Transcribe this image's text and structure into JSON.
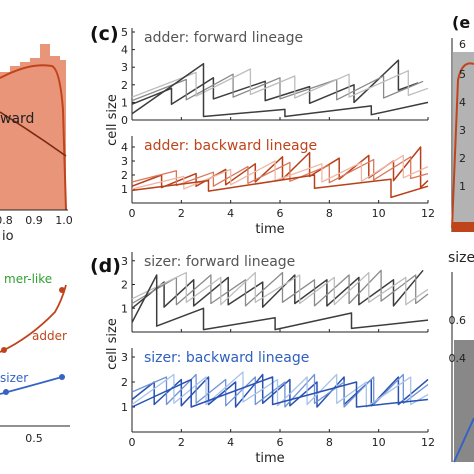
{
  "colors": {
    "forward": "#444444",
    "adder_backward": "#c0441b",
    "sizer_backward": "#2f5fbf",
    "adder_curve": "#c0441b",
    "sizer_curve": "#3463c4",
    "timer": "#2ea02e",
    "hist_fill": "#e8957a",
    "hist_dark": "#c0441b",
    "gray": "#888888"
  },
  "labels": {
    "panel_c": "(c)",
    "panel_d": "(d)",
    "top_right_label": "(e",
    "sizer_right": "sizer:"
  },
  "chart_data": [
    {
      "id": "panel-b-left-histogram",
      "type": "bar",
      "xlabel": "io",
      "x_ticks": [
        "0.8",
        "0.9",
        "1.0"
      ],
      "line_label": "ward"
    },
    {
      "id": "panel-left-bottom",
      "type": "line",
      "x_ticks": [
        "0.5"
      ],
      "series": [
        {
          "name": "adder",
          "x": [
            0.05,
            0.22,
            0.4,
            0.56
          ],
          "y": [
            0.12,
            0.3,
            0.55,
            0.85
          ]
        },
        {
          "name": "sizer",
          "x": [
            0.05,
            0.22,
            0.4,
            0.56
          ],
          "y": [
            0.05,
            0.12,
            0.2,
            0.27
          ]
        }
      ],
      "annotations": [
        "mer-like",
        "adder",
        "sizer"
      ]
    },
    {
      "id": "c-forward",
      "type": "line",
      "title": "adder: forward lineage",
      "ylabel": "cell size",
      "xlim": [
        0,
        12
      ],
      "ylim": [
        0,
        5
      ],
      "y_ticks": [
        "0",
        "1",
        "2",
        "3",
        "4",
        "5"
      ],
      "x_ticks": [],
      "series": [
        {
          "name": "",
          "style": "dark",
          "x": [
            0,
            1.6,
            1.6,
            3.3,
            3.3,
            5.4,
            5.4,
            7.2,
            7.2,
            9.0,
            9.0,
            10.8,
            10.8,
            11.6
          ],
          "y": [
            0.9,
            1.8,
            0.9,
            2.4,
            1.2,
            2.2,
            1.1,
            1.9,
            0.95,
            2.0,
            1.0,
            3.4,
            1.7,
            2.1
          ]
        },
        {
          "name": "",
          "style": "mid",
          "x": [
            0,
            2.2,
            2.2,
            4.1,
            4.1,
            6.0,
            6.0,
            8.3,
            8.3,
            10.2,
            10.2,
            11.8
          ],
          "y": [
            1.1,
            2.3,
            1.15,
            2.6,
            1.3,
            2.4,
            1.2,
            2.3,
            1.15,
            2.5,
            1.25,
            2.2
          ]
        },
        {
          "name": "",
          "style": "light",
          "x": [
            0,
            2.6,
            2.6,
            4.8,
            4.8,
            6.6,
            6.6,
            8.8,
            8.8,
            11.2,
            11.2,
            12
          ],
          "y": [
            1.3,
            2.7,
            1.35,
            2.9,
            1.45,
            2.5,
            1.25,
            2.6,
            1.3,
            2.8,
            1.4,
            1.8
          ]
        },
        {
          "name": "",
          "style": "dark",
          "x": [
            0,
            2.9,
            2.9,
            6.2,
            6.2,
            9.7,
            9.7,
            12
          ],
          "y": [
            0.35,
            3.2,
            0.2,
            0.6,
            0.2,
            0.8,
            0.3,
            1.0
          ]
        }
      ]
    },
    {
      "id": "c-backward",
      "type": "line",
      "title": "adder: backward lineage",
      "ylabel": "cell size",
      "xlim": [
        0,
        12
      ],
      "ylim": [
        0,
        4.5
      ],
      "y_ticks": [
        "1",
        "2",
        "3",
        "4"
      ],
      "x_ticks": [
        "0",
        "2",
        "4",
        "6",
        "8",
        "10",
        "12"
      ],
      "xlabel": "time",
      "series": [
        {
          "name": "",
          "style": "dark",
          "x": [
            0,
            1.2,
            1.2,
            2.6,
            2.6,
            3.8,
            3.8,
            5.0,
            5.0,
            6.1,
            6.1,
            7.2,
            7.2,
            8.4,
            8.4,
            9.6,
            9.6,
            10.6,
            10.6,
            11.7,
            11.7,
            12
          ],
          "y": [
            1.2,
            2.0,
            1.1,
            2.1,
            1.2,
            2.4,
            1.3,
            2.8,
            1.5,
            3.3,
            1.7,
            3.6,
            1.9,
            3.2,
            1.7,
            3.4,
            1.8,
            3.0,
            1.6,
            4.0,
            1.1,
            1.6
          ]
        },
        {
          "name": "",
          "style": "mid",
          "x": [
            0,
            1.8,
            1.8,
            3.3,
            3.3,
            4.7,
            4.7,
            6.4,
            6.4,
            8.0,
            8.0,
            9.8,
            9.8,
            11.3,
            11.3,
            12
          ],
          "y": [
            1.5,
            2.3,
            1.25,
            2.2,
            1.2,
            2.6,
            1.4,
            2.9,
            1.55,
            2.7,
            1.45,
            3.1,
            1.65,
            3.3,
            1.75,
            2.1
          ]
        },
        {
          "name": "",
          "style": "light",
          "x": [
            0,
            2.1,
            2.1,
            4.0,
            4.0,
            5.8,
            5.8,
            7.7,
            7.7,
            9.3,
            9.3,
            11.0,
            11.0,
            12
          ],
          "y": [
            1.0,
            1.9,
            1.0,
            2.4,
            1.3,
            3.0,
            1.6,
            2.8,
            1.5,
            2.9,
            1.55,
            3.4,
            1.8,
            2.6
          ]
        },
        {
          "name": "",
          "style": "dark",
          "x": [
            0,
            3.1,
            3.1,
            7.4,
            7.4,
            10.5,
            10.5,
            12
          ],
          "y": [
            0.9,
            1.6,
            0.85,
            2.0,
            1.05,
            1.7,
            0.4,
            1.2
          ]
        }
      ]
    },
    {
      "id": "d-forward",
      "type": "line",
      "title": "sizer: forward lineage",
      "ylabel": "cell size",
      "xlim": [
        0,
        12
      ],
      "ylim": [
        0,
        3.2
      ],
      "y_ticks": [
        "1",
        "2",
        "3"
      ],
      "x_ticks": [],
      "series": [
        {
          "name": "",
          "style": "dark",
          "x": [
            0,
            1.3,
            1.3,
            2.5,
            2.5,
            3.9,
            3.9,
            5.3,
            5.3,
            6.6,
            6.6,
            7.9,
            7.9,
            9.2,
            9.2,
            10.6,
            10.6,
            11.8
          ],
          "y": [
            1.0,
            2.1,
            1.05,
            2.2,
            1.1,
            2.3,
            1.15,
            2.1,
            1.05,
            2.4,
            1.2,
            2.2,
            1.1,
            2.3,
            1.15,
            2.2,
            1.1,
            2.6
          ]
        },
        {
          "name": "",
          "style": "mid",
          "x": [
            0,
            1.8,
            1.8,
            3.2,
            3.2,
            4.6,
            4.6,
            6.1,
            6.1,
            7.4,
            7.4,
            8.8,
            8.8,
            10.1,
            10.1,
            11.5,
            11.5,
            12
          ],
          "y": [
            1.2,
            2.3,
            1.15,
            2.4,
            1.2,
            2.2,
            1.1,
            2.5,
            1.25,
            2.2,
            1.1,
            2.4,
            1.2,
            2.6,
            1.3,
            2.4,
            1.2,
            1.6
          ]
        },
        {
          "name": "",
          "style": "light",
          "x": [
            0,
            2.2,
            2.2,
            3.6,
            3.6,
            5.0,
            5.0,
            6.8,
            6.8,
            8.2,
            8.2,
            9.6,
            9.6,
            11.1,
            11.1,
            12
          ],
          "y": [
            1.4,
            2.5,
            1.25,
            2.3,
            1.15,
            2.5,
            1.25,
            2.4,
            1.2,
            2.3,
            1.15,
            2.5,
            1.25,
            2.3,
            1.15,
            1.8
          ]
        },
        {
          "name": "",
          "style": "dark",
          "x": [
            0,
            1.0,
            1.0,
            2.9,
            2.9,
            5.8,
            5.8,
            8.9,
            8.9,
            12
          ],
          "y": [
            0.4,
            2.4,
            0.25,
            1.0,
            0.1,
            0.6,
            0.1,
            0.8,
            0.15,
            0.5
          ]
        }
      ]
    },
    {
      "id": "d-backward",
      "type": "line",
      "title": "sizer: backward lineage",
      "ylabel": "cell size",
      "xlim": [
        0,
        12
      ],
      "ylim": [
        0,
        3.2
      ],
      "y_ticks": [
        "1",
        "2",
        "3"
      ],
      "x_ticks": [
        "0",
        "2",
        "4",
        "6",
        "8",
        "10",
        "12"
      ],
      "xlabel": "time",
      "series": [
        {
          "name": "",
          "style": "dark",
          "x": [
            0,
            0.9,
            0.9,
            2.0,
            2.0,
            3.1,
            3.1,
            4.2,
            4.2,
            5.3,
            5.3,
            6.4,
            6.4,
            7.5,
            7.5,
            8.6,
            8.6,
            9.7,
            9.7,
            10.8,
            10.8,
            12
          ],
          "y": [
            1.3,
            2.0,
            1.1,
            2.1,
            1.05,
            2.2,
            1.1,
            2.0,
            1.0,
            2.3,
            1.15,
            2.1,
            1.05,
            2.0,
            1.0,
            2.2,
            1.1,
            2.1,
            1.05,
            2.2,
            1.1,
            2.1
          ]
        },
        {
          "name": "",
          "style": "mid",
          "x": [
            0,
            1.4,
            1.4,
            2.6,
            2.6,
            3.8,
            3.8,
            5.0,
            5.0,
            6.2,
            6.2,
            7.4,
            7.4,
            8.6,
            8.6,
            9.8,
            9.8,
            11.0,
            11.0,
            12
          ],
          "y": [
            1.6,
            2.2,
            1.1,
            2.3,
            1.15,
            2.1,
            1.05,
            2.2,
            1.1,
            2.0,
            1.0,
            2.3,
            1.15,
            2.0,
            1.0,
            2.2,
            1.1,
            2.3,
            1.15,
            1.9
          ]
        },
        {
          "name": "",
          "style": "light",
          "x": [
            0,
            1.7,
            1.7,
            3.0,
            3.0,
            4.5,
            4.5,
            5.9,
            5.9,
            7.1,
            7.1,
            8.3,
            8.3,
            9.5,
            9.5,
            11.3,
            11.3,
            12
          ],
          "y": [
            1.1,
            2.3,
            1.15,
            2.2,
            1.1,
            2.4,
            1.2,
            2.1,
            1.05,
            2.2,
            1.1,
            2.3,
            1.15,
            2.0,
            1.0,
            2.2,
            1.1,
            1.5
          ]
        },
        {
          "name": "",
          "style": "dark",
          "x": [
            0,
            2.4,
            2.4,
            5.7,
            5.7,
            9.1,
            9.1,
            12
          ],
          "y": [
            1.0,
            2.1,
            1.0,
            2.2,
            1.1,
            2.0,
            1.0,
            1.3
          ]
        }
      ]
    }
  ]
}
